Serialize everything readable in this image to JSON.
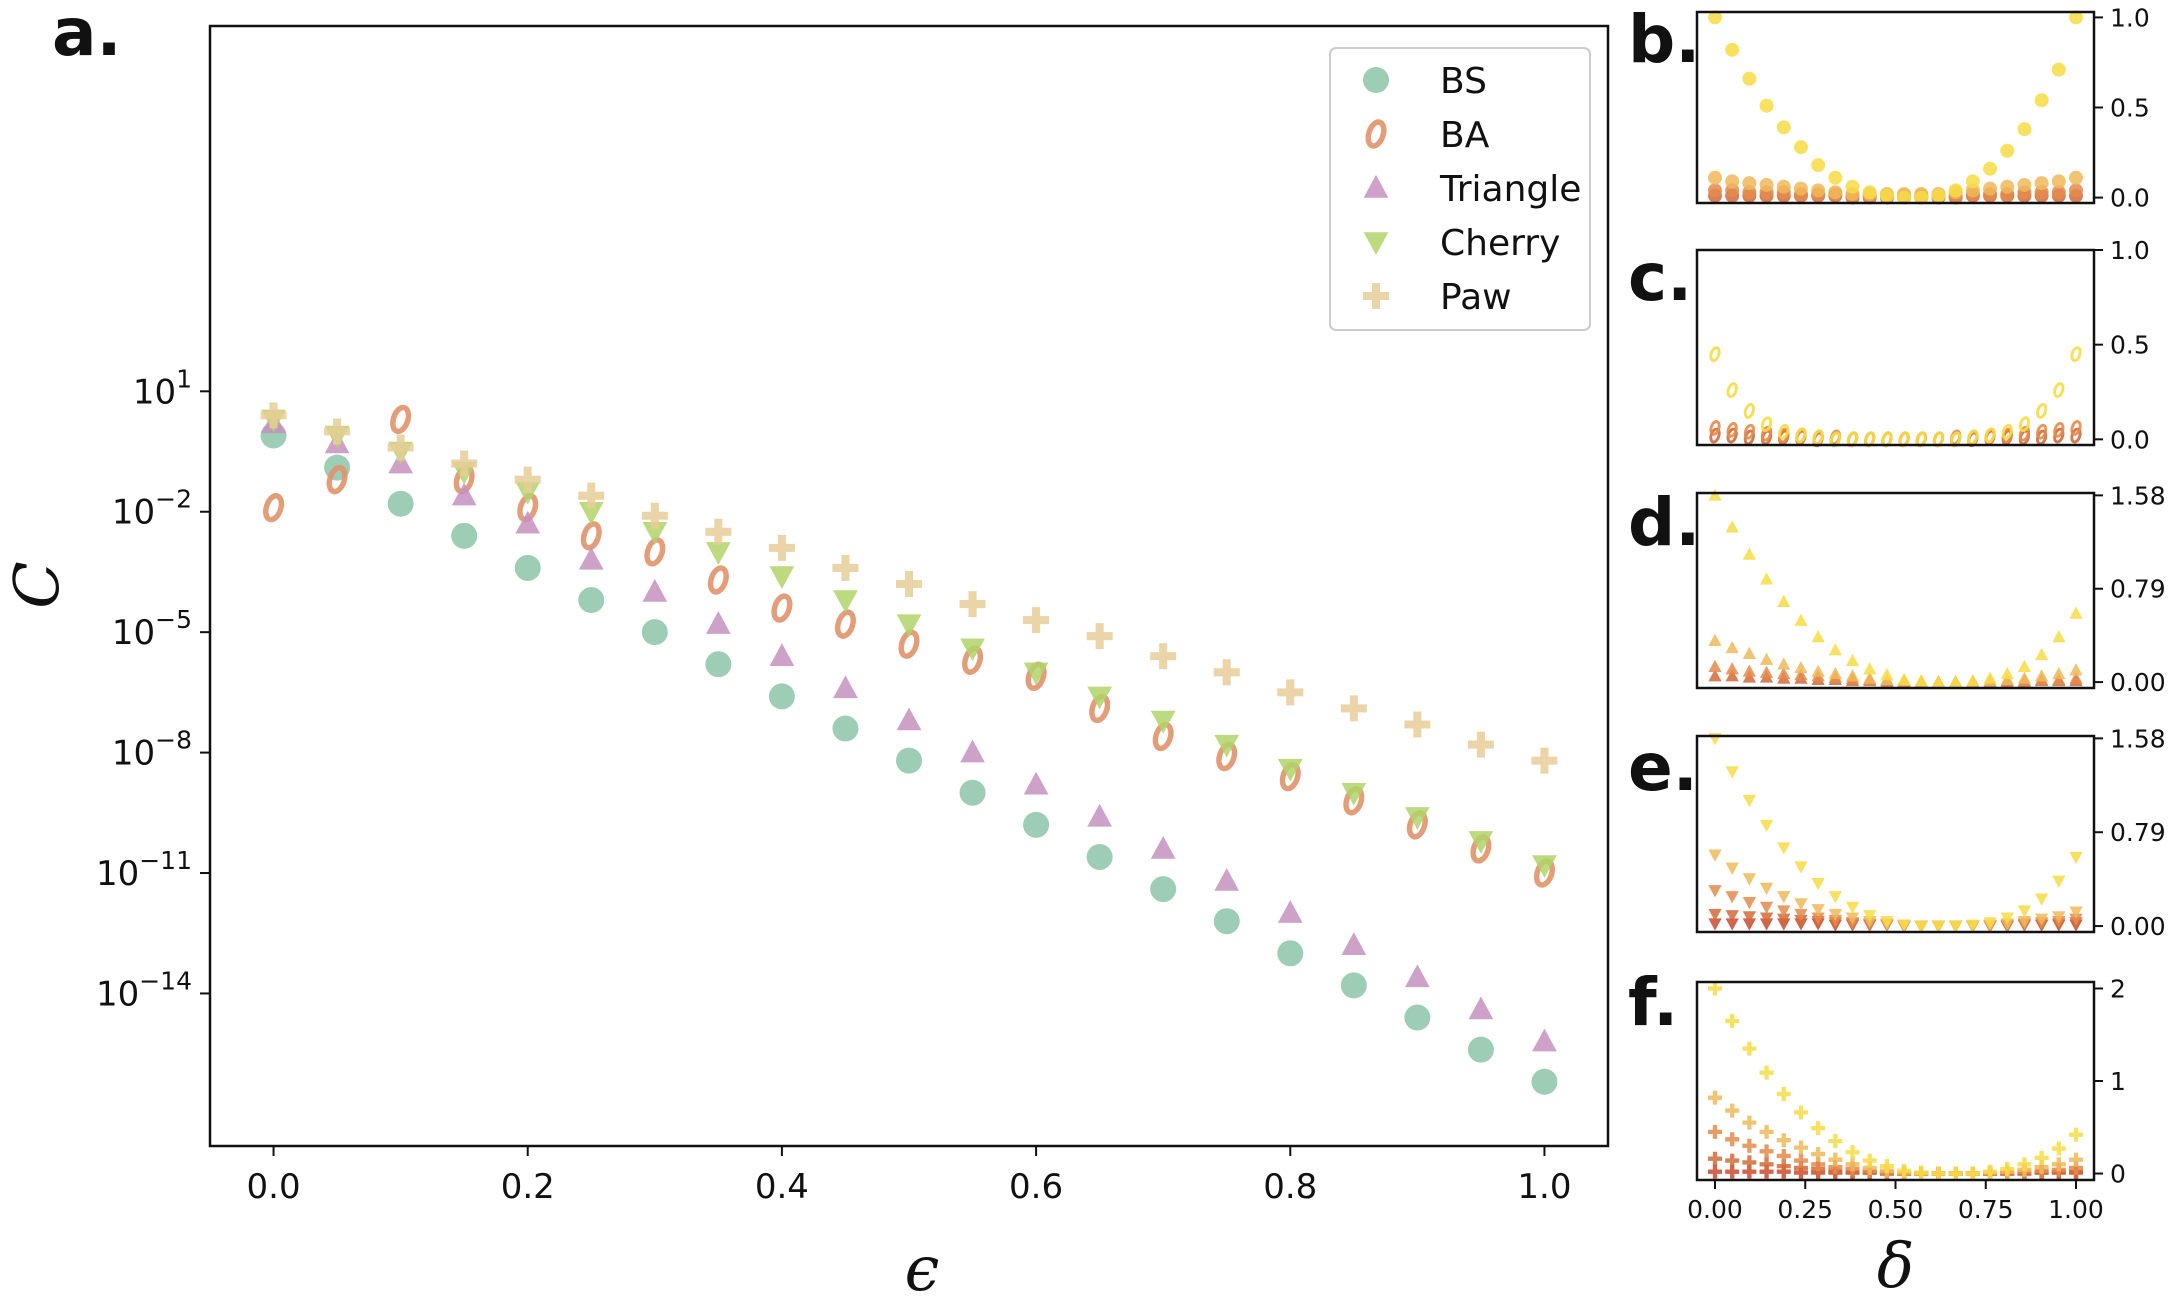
{
  "colors": {
    "BS": "#8cc4a8",
    "BA": "#e0946a",
    "Triangle": "#c691c0",
    "Cherry": "#b0d36a",
    "Paw": "#e7cc98",
    "small_palette": [
      "#f7dc45",
      "#eeb95a",
      "#e38b4c",
      "#d46a3a",
      "#c94a2e"
    ]
  },
  "chart_data": [
    {
      "panel": "a.",
      "type": "scatter",
      "xlabel": "ϵ",
      "ylabel": "C",
      "yscale": "log",
      "xlim": [
        -0.05,
        1.05
      ],
      "ylim_exponent": [
        -17.8,
        10.1
      ],
      "x_ticks": [
        "0.0",
        "0.2",
        "0.4",
        "0.6",
        "0.8",
        "1.0"
      ],
      "y_tick_bases": [
        "10",
        "10",
        "10",
        "10",
        "10",
        "10"
      ],
      "y_tick_exponents": [
        "1",
        "−2",
        "−5",
        "−8",
        "−11",
        "−14"
      ],
      "legend_position": "upper right",
      "legend": [
        "BS",
        "BA",
        "Triangle",
        "Cherry",
        "Paw"
      ],
      "x": [
        0.0,
        0.05,
        0.1,
        0.15,
        0.2,
        0.25,
        0.3,
        0.35,
        0.4,
        0.45,
        0.5,
        0.55,
        0.6,
        0.65,
        0.7,
        0.75,
        0.8,
        0.85,
        0.9,
        0.95,
        1.0
      ],
      "series": [
        {
          "name": "BS",
          "marker": "circle",
          "log10_values": [
            -0.1,
            -0.9,
            -1.8,
            -2.6,
            -3.4,
            -4.2,
            -5.0,
            -5.8,
            -6.6,
            -7.4,
            -8.2,
            -9.0,
            -9.8,
            -10.6,
            -11.4,
            -12.2,
            -13.0,
            -13.8,
            -14.6,
            -15.4,
            -16.2
          ]
        },
        {
          "name": "BA",
          "marker": "o-text",
          "log10_values": [
            -1.9,
            -1.2,
            0.3,
            -1.2,
            -1.9,
            -2.6,
            -3.0,
            -3.7,
            -4.4,
            -4.8,
            -5.3,
            -5.7,
            -6.1,
            -6.9,
            -7.6,
            -8.1,
            -8.6,
            -9.2,
            -9.8,
            -10.4,
            -11.0
          ]
        },
        {
          "name": "Triangle",
          "marker": "triangle-up",
          "log10_values": [
            0.2,
            -0.3,
            -0.8,
            -1.6,
            -2.3,
            -3.2,
            -4.0,
            -4.8,
            -5.6,
            -6.4,
            -7.2,
            -8.0,
            -8.8,
            -9.6,
            -10.4,
            -11.2,
            -12.0,
            -12.8,
            -13.6,
            -14.4,
            -15.2
          ]
        },
        {
          "name": "Cherry",
          "marker": "triangle-down",
          "log10_values": [
            0.3,
            -0.1,
            -0.5,
            -1.0,
            -1.5,
            -2.0,
            -2.5,
            -3.0,
            -3.6,
            -4.2,
            -4.8,
            -5.4,
            -6.0,
            -6.6,
            -7.2,
            -7.8,
            -8.4,
            -9.0,
            -9.6,
            -10.2,
            -10.8
          ]
        },
        {
          "name": "Paw",
          "marker": "plus",
          "log10_values": [
            0.4,
            0.0,
            -0.4,
            -0.8,
            -1.2,
            -1.6,
            -2.1,
            -2.5,
            -2.9,
            -3.4,
            -3.8,
            -4.3,
            -4.7,
            -5.1,
            -5.6,
            -6.0,
            -6.5,
            -6.9,
            -7.3,
            -7.8,
            -8.2
          ]
        }
      ]
    },
    {
      "panel": "b.",
      "type": "scatter",
      "marker": "circle",
      "ylim": [
        -0.03,
        1.03
      ],
      "y_ticks": [
        "0.0",
        "0.5",
        "1.0"
      ],
      "y_tick_values": [
        0,
        0.5,
        1.0
      ],
      "series": [
        {
          "values": [
            1.0,
            0.82,
            0.66,
            0.51,
            0.39,
            0.28,
            0.18,
            0.11,
            0.06,
            0.03,
            0.01,
            0.0,
            0.0,
            0.01,
            0.04,
            0.09,
            0.16,
            0.26,
            0.38,
            0.54,
            0.71,
            1.0
          ]
        },
        {
          "values": [
            0.11,
            0.09,
            0.08,
            0.07,
            0.06,
            0.05,
            0.04,
            0.03,
            0.02,
            0.02,
            0.02,
            0.02,
            0.02,
            0.02,
            0.03,
            0.04,
            0.05,
            0.06,
            0.07,
            0.08,
            0.09,
            0.11
          ]
        },
        {
          "values": [
            0.04,
            0.04,
            0.03,
            0.03,
            0.03,
            0.02,
            0.02,
            0.02,
            0.01,
            0.01,
            0.01,
            0.01,
            0.01,
            0.01,
            0.01,
            0.02,
            0.02,
            0.02,
            0.03,
            0.03,
            0.03,
            0.04
          ]
        },
        {
          "values": [
            0.01,
            0.01,
            0.01,
            0.01,
            0.01,
            0.01,
            0.01,
            0.01,
            0.0,
            0.0,
            0.0,
            0.0,
            0.0,
            0.0,
            0.0,
            0.01,
            0.01,
            0.01,
            0.01,
            0.01,
            0.01,
            0.01
          ]
        }
      ]
    },
    {
      "panel": "c.",
      "type": "scatter",
      "marker": "o-text",
      "ylim": [
        -0.03,
        1.0
      ],
      "y_ticks": [
        "0.0",
        "0.5",
        "1.0"
      ],
      "y_tick_values": [
        0,
        0.5,
        1.0
      ],
      "series": [
        {
          "values": [
            0.45,
            0.26,
            0.15,
            0.08,
            0.04,
            0.02,
            0.01,
            0.0,
            0.0,
            0.0,
            0.0,
            0.0,
            0.0,
            0.0,
            0.0,
            0.01,
            0.02,
            0.04,
            0.08,
            0.15,
            0.26,
            0.45
          ]
        },
        {
          "values": [
            0.06,
            0.05,
            0.04,
            0.03,
            0.02,
            0.02,
            0.01,
            0.01,
            0.0,
            0.0,
            0.0,
            0.0,
            0.0,
            0.0,
            0.01,
            0.01,
            0.02,
            0.02,
            0.03,
            0.04,
            0.05,
            0.06
          ]
        },
        {
          "values": [
            0.02,
            0.02,
            0.01,
            0.01,
            0.01,
            0.01,
            0.0,
            0.0,
            0.0,
            0.0,
            0.0,
            0.0,
            0.0,
            0.0,
            0.0,
            0.0,
            0.01,
            0.01,
            0.01,
            0.01,
            0.02,
            0.02
          ]
        }
      ]
    },
    {
      "panel": "d.",
      "type": "scatter",
      "marker": "triangle-up",
      "ylim": [
        -0.05,
        1.6
      ],
      "y_ticks": [
        "0.00",
        "0.79",
        "1.58"
      ],
      "y_tick_values": [
        0,
        0.79,
        1.58
      ],
      "series": [
        {
          "values": [
            1.58,
            1.31,
            1.08,
            0.87,
            0.68,
            0.52,
            0.38,
            0.27,
            0.18,
            0.11,
            0.06,
            0.02,
            0.01,
            0.0,
            0.0,
            0.01,
            0.03,
            0.07,
            0.13,
            0.23,
            0.38,
            0.58
          ]
        },
        {
          "values": [
            0.35,
            0.29,
            0.24,
            0.19,
            0.15,
            0.12,
            0.09,
            0.07,
            0.05,
            0.03,
            0.02,
            0.01,
            0.0,
            0.0,
            0.0,
            0.0,
            0.01,
            0.02,
            0.03,
            0.05,
            0.07,
            0.1
          ]
        },
        {
          "values": [
            0.13,
            0.11,
            0.09,
            0.08,
            0.07,
            0.06,
            0.05,
            0.04,
            0.03,
            0.02,
            0.01,
            0.01,
            0.0,
            0.0,
            0.0,
            0.0,
            0.0,
            0.01,
            0.01,
            0.02,
            0.02,
            0.03
          ]
        },
        {
          "values": [
            0.05,
            0.05,
            0.04,
            0.04,
            0.03,
            0.03,
            0.02,
            0.02,
            0.01,
            0.01,
            0.0,
            0.0,
            0.0,
            0.0,
            0.0,
            0.0,
            0.0,
            0.0,
            0.0,
            0.01,
            0.01,
            0.01
          ]
        }
      ]
    },
    {
      "panel": "e.",
      "type": "scatter",
      "marker": "triangle-down",
      "ylim": [
        -0.05,
        1.6
      ],
      "y_ticks": [
        "0.00",
        "0.79",
        "1.58"
      ],
      "y_tick_values": [
        0,
        0.79,
        1.58
      ],
      "series": [
        {
          "values": [
            1.58,
            1.3,
            1.06,
            0.85,
            0.66,
            0.5,
            0.36,
            0.25,
            0.16,
            0.09,
            0.04,
            0.01,
            0.0,
            0.0,
            0.0,
            0.01,
            0.03,
            0.07,
            0.13,
            0.23,
            0.38,
            0.58
          ]
        },
        {
          "values": [
            0.6,
            0.49,
            0.4,
            0.32,
            0.25,
            0.19,
            0.14,
            0.1,
            0.07,
            0.04,
            0.02,
            0.01,
            0.0,
            0.0,
            0.0,
            0.0,
            0.01,
            0.02,
            0.04,
            0.06,
            0.08,
            0.12
          ]
        },
        {
          "values": [
            0.3,
            0.25,
            0.2,
            0.16,
            0.13,
            0.1,
            0.07,
            0.05,
            0.03,
            0.02,
            0.01,
            0.0,
            0.0,
            0.0,
            0.0,
            0.0,
            0.0,
            0.01,
            0.02,
            0.03,
            0.04,
            0.06
          ]
        },
        {
          "values": [
            0.1,
            0.09,
            0.08,
            0.07,
            0.06,
            0.05,
            0.04,
            0.03,
            0.02,
            0.01,
            0.01,
            0.0,
            0.0,
            0.0,
            0.0,
            0.0,
            0.0,
            0.0,
            0.01,
            0.01,
            0.02,
            0.03
          ]
        },
        {
          "values": [
            0.02,
            0.02,
            0.02,
            0.02,
            0.02,
            0.02,
            0.02,
            0.01,
            0.01,
            0.01,
            0.01,
            0.0,
            0.0,
            0.0,
            0.0,
            0.0,
            0.0,
            0.0,
            0.01,
            0.01,
            0.01,
            0.01
          ]
        }
      ]
    },
    {
      "panel": "f.",
      "type": "scatter",
      "marker": "plus",
      "ylim": [
        -0.07,
        2.07
      ],
      "y_ticks": [
        "0",
        "1",
        "2"
      ],
      "y_tick_values": [
        0,
        1,
        2
      ],
      "x_ticks": [
        "0.00",
        "0.25",
        "0.50",
        "0.75",
        "1.00"
      ],
      "x_tick_values": [
        0,
        0.25,
        0.5,
        0.75,
        1.0
      ],
      "xlabel": "δ",
      "series": [
        {
          "values": [
            2.0,
            1.65,
            1.35,
            1.09,
            0.86,
            0.66,
            0.49,
            0.35,
            0.23,
            0.14,
            0.08,
            0.03,
            0.01,
            0.0,
            0.0,
            0.0,
            0.02,
            0.05,
            0.1,
            0.17,
            0.27,
            0.42
          ]
        },
        {
          "values": [
            0.82,
            0.68,
            0.55,
            0.45,
            0.36,
            0.28,
            0.21,
            0.15,
            0.1,
            0.06,
            0.03,
            0.01,
            0.0,
            0.0,
            0.0,
            0.0,
            0.01,
            0.02,
            0.04,
            0.07,
            0.1,
            0.15
          ]
        },
        {
          "values": [
            0.45,
            0.37,
            0.3,
            0.24,
            0.19,
            0.14,
            0.1,
            0.07,
            0.05,
            0.03,
            0.01,
            0.0,
            0.0,
            0.0,
            0.0,
            0.0,
            0.0,
            0.01,
            0.02,
            0.03,
            0.04,
            0.06
          ]
        },
        {
          "values": [
            0.16,
            0.14,
            0.12,
            0.1,
            0.08,
            0.06,
            0.05,
            0.03,
            0.02,
            0.01,
            0.01,
            0.0,
            0.0,
            0.0,
            0.0,
            0.0,
            0.0,
            0.0,
            0.01,
            0.01,
            0.02,
            0.02
          ]
        },
        {
          "values": [
            0.02,
            0.02,
            0.02,
            0.02,
            0.02,
            0.01,
            0.01,
            0.01,
            0.01,
            0.01,
            0.0,
            0.0,
            0.0,
            0.0,
            0.0,
            0.0,
            0.0,
            0.0,
            0.0,
            0.01,
            0.01,
            0.01
          ]
        }
      ]
    }
  ]
}
